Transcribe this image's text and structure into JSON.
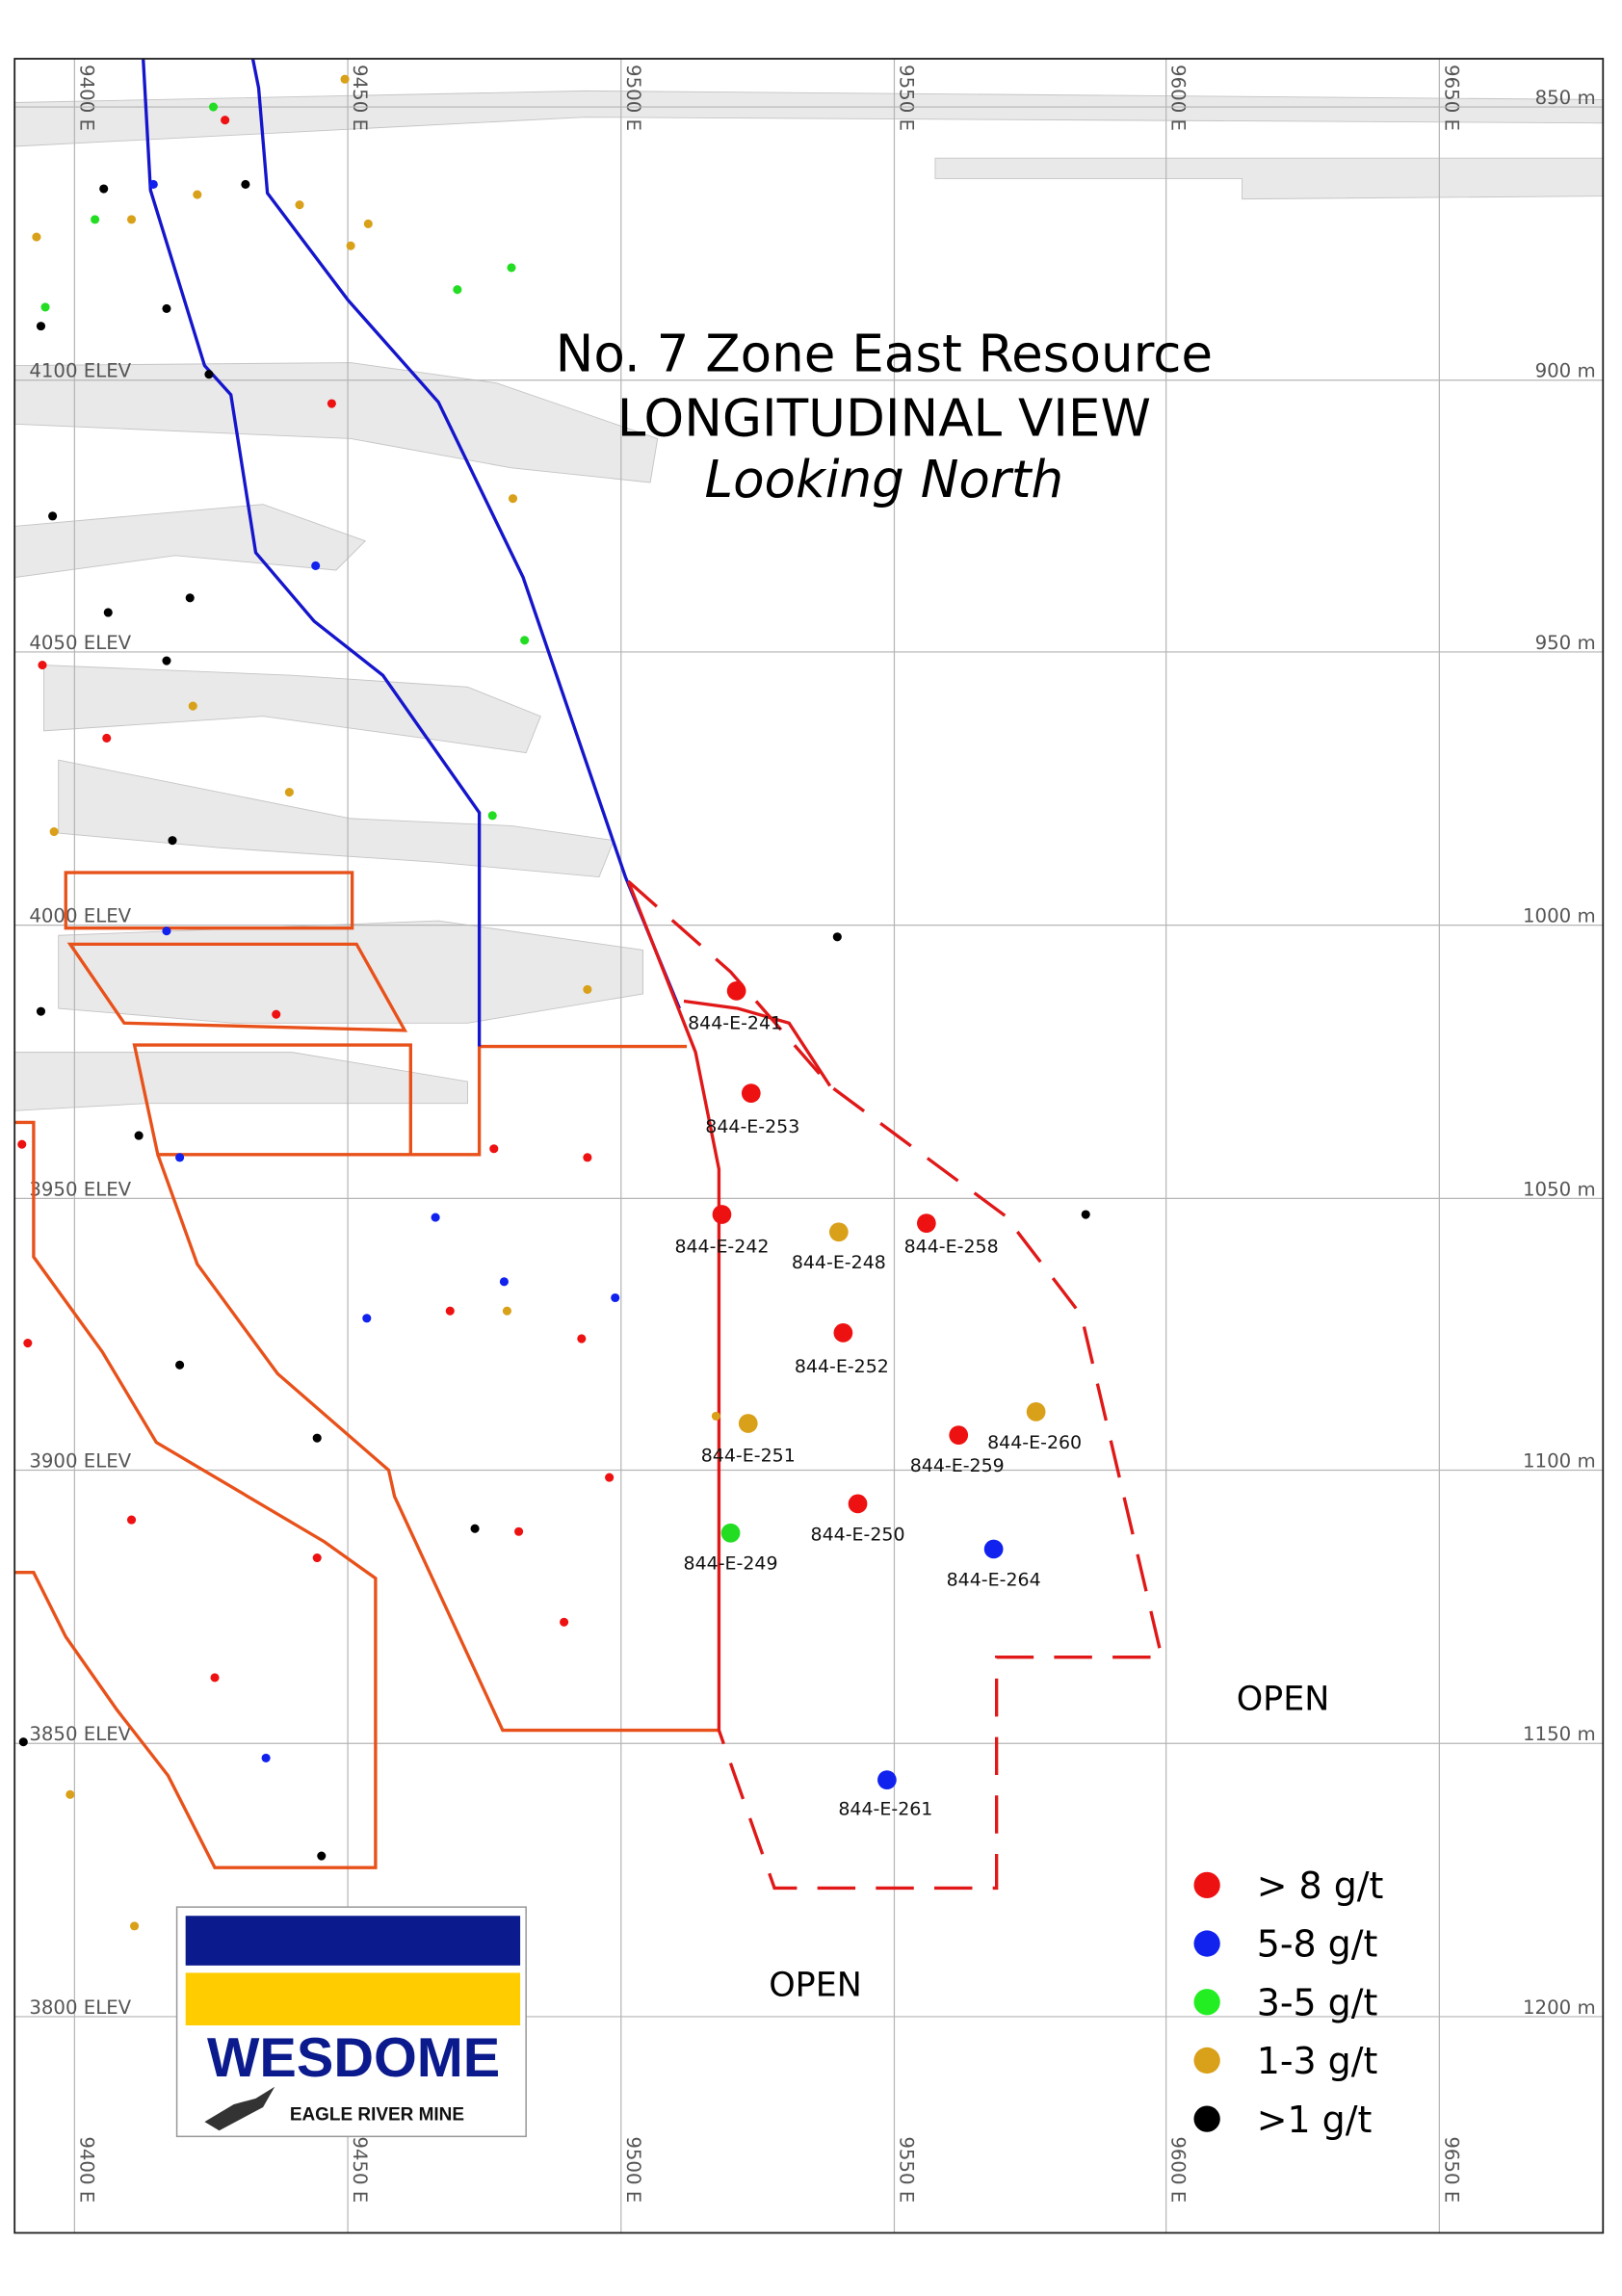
{
  "title": {
    "line1": "No. 7 Zone East Resource",
    "line2": "LONGITUDINAL VIEW",
    "line3": "Looking North"
  },
  "eastings": [
    "9400 E",
    "9450 E",
    "9500 E",
    "9550 E",
    "9600 E",
    "9650 E"
  ],
  "elevations": [
    "4100 ELEV",
    "4050 ELEV",
    "4000 ELEV",
    "3950 ELEV",
    "3900 ELEV",
    "3850 ELEV",
    "3800 ELEV"
  ],
  "depths": [
    "850 m",
    "900 m",
    "950 m",
    "1000 m",
    "1050 m",
    "1100 m",
    "1150 m",
    "1200 m"
  ],
  "holes": [
    {
      "label": "844-E-241",
      "color": "#ee1111"
    },
    {
      "label": "844-E-253",
      "color": "#ee1111"
    },
    {
      "label": "844-E-242",
      "color": "#ee1111"
    },
    {
      "label": "844-E-248",
      "color": "#d9a019"
    },
    {
      "label": "844-E-258",
      "color": "#ee1111"
    },
    {
      "label": "844-E-252",
      "color": "#ee1111"
    },
    {
      "label": "844-E-251",
      "color": "#d9a019"
    },
    {
      "label": "844-E-260",
      "color": "#d9a019"
    },
    {
      "label": "844-E-259",
      "color": "#ee1111"
    },
    {
      "label": "844-E-250",
      "color": "#ee1111"
    },
    {
      "label": "844-E-249",
      "color": "#22dd22"
    },
    {
      "label": "844-E-264",
      "color": "#1122ee"
    },
    {
      "label": "844-E-261",
      "color": "#1122ee"
    }
  ],
  "open_labels": [
    "OPEN",
    "OPEN"
  ],
  "legend": [
    {
      "label": "> 8 g/t",
      "color": "#ee1111"
    },
    {
      "label": "5-8 g/t",
      "color": "#1122ee"
    },
    {
      "label": "3-5 g/t",
      "color": "#22ee22"
    },
    {
      "label": "1-3 g/t",
      "color": "#d9a019"
    },
    {
      "label": ">1 g/t",
      "color": "#000000"
    }
  ],
  "logo": {
    "name": "WESDOME",
    "subtitle": "EAGLE RIVER MINE"
  }
}
